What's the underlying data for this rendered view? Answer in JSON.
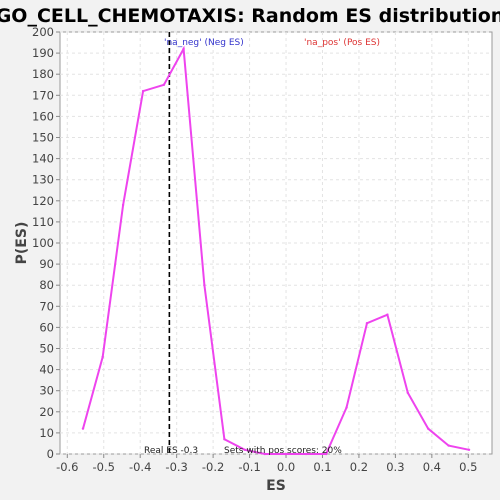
{
  "chart_data": {
    "type": "line",
    "title": "GO_CELL_CHEMOTAXIS: Random ES distribution",
    "xlabel": "ES",
    "ylabel": "P(ES)",
    "xlim": [
      -0.62,
      0.565
    ],
    "ylim": [
      0,
      200
    ],
    "x_ticks": [
      -0.6,
      -0.5,
      -0.4,
      -0.3,
      -0.2,
      -0.1,
      0.0,
      0.1,
      0.2,
      0.3,
      0.4,
      0.5
    ],
    "x_tick_labels": [
      "-0.6",
      "-0.5",
      "-0.4",
      "-0.3",
      "-0.2",
      "-0.1",
      "0.0",
      "0.1",
      "0.2",
      "0.3",
      "0.4",
      "0.5"
    ],
    "y_ticks": [
      0,
      10,
      20,
      30,
      40,
      50,
      60,
      70,
      80,
      90,
      100,
      110,
      120,
      130,
      140,
      150,
      160,
      170,
      180,
      190,
      200
    ],
    "y_tick_labels": [
      "0",
      "10",
      "20",
      "30",
      "40",
      "50",
      "60",
      "70",
      "80",
      "90",
      "100",
      "110",
      "120",
      "130",
      "140",
      "150",
      "160",
      "170",
      "180",
      "190",
      "200"
    ],
    "grid": true,
    "series": [
      {
        "color": "#ee44ee",
        "x": [
          -0.557,
          -0.503,
          -0.447,
          -0.392,
          -0.335,
          -0.281,
          -0.224,
          -0.169,
          -0.113,
          -0.058,
          -0.002,
          0.055,
          0.11,
          0.166,
          0.222,
          0.278,
          0.334,
          0.39,
          0.446,
          0.502
        ],
        "y": [
          12,
          46,
          118,
          172,
          175,
          192,
          80,
          7,
          2,
          0,
          0,
          0,
          0,
          22,
          62,
          66,
          29,
          12,
          4,
          2
        ]
      }
    ],
    "real_es": -0.32,
    "legend": [
      {
        "label": "'na_neg' (Neg ES)",
        "color": "#3333cc"
      },
      {
        "label": "'na_pos' (Pos ES)",
        "color": "#dd3333"
      }
    ],
    "annotations": {
      "real_es_label": "Real ES -0.3",
      "pos_scores_label": "Sets with pos scores: 20%"
    }
  }
}
